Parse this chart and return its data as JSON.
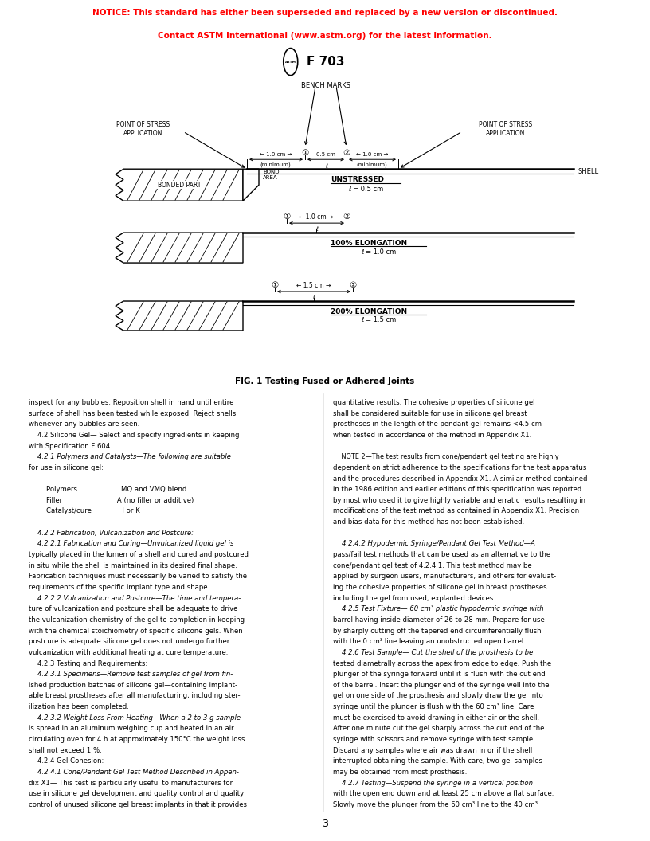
{
  "notice_line1": "NOTICE: This standard has either been superseded and replaced by a new version or discontinued.",
  "notice_line2": "Contact ASTM International (www.astm.org) for the latest information.",
  "notice_color": "#FF0000",
  "title": "F 703",
  "fig_caption": "FIG. 1 Testing Fused or Adhered Joints",
  "page_number": "3",
  "body_col1": [
    "inspect for any bubbles. Reposition shell in hand until entire",
    "surface of shell has been tested while exposed. Reject shells",
    "whenever any bubbles are seen.",
    "    4.2 Silicone Gel— Select and specify ingredients in keeping",
    "with Specification F 604.",
    "    4.2.1 Polymers and Catalysts—The following are suitable",
    "for use in silicone gel:",
    "",
    "        Polymers                    MQ and VMQ blend",
    "        Filler                         A (no filler or additive)",
    "        Catalyst/cure              J or K",
    "",
    "    4.2.2 Fabrication, Vulcanization and Postcure:",
    "    4.2.2.1 Fabrication and Curing—Unvulcanized liquid gel is",
    "typically placed in the lumen of a shell and cured and postcured",
    "in situ while the shell is maintained in its desired final shape.",
    "Fabrication techniques must necessarily be varied to satisfy the",
    "requirements of the specific implant type and shape.",
    "    4.2.2.2 Vulcanization and Postcure—The time and tempera-",
    "ture of vulcanization and postcure shall be adequate to drive",
    "the vulcanization chemistry of the gel to completion in keeping",
    "with the chemical stoichiometry of specific silicone gels. When",
    "postcure is adequate silicone gel does not undergo further",
    "vulcanization with additional heating at cure temperature.",
    "    4.2.3 Testing and Requirements:",
    "    4.2.3.1 Specimens—Remove test samples of gel from fin-",
    "ished production batches of silicone gel—containing implant-",
    "able breast prostheses after all manufacturing, including ster-",
    "ilization has been completed.",
    "    4.2.3.2 Weight Loss From Heating—When a 2 to 3 g sample",
    "is spread in an aluminum weighing cup and heated in an air",
    "circulating oven for 4 h at approximately 150°C the weight loss",
    "shall not exceed 1 %.",
    "    4.2.4 Gel Cohesion:",
    "    4.2.4.1 Cone/Pendant Gel Test Method Described in Appen-",
    "dix X1— This test is particularly useful to manufacturers for",
    "use in silicone gel development and quality control and quality",
    "control of unused silicone gel breast implants in that it provides"
  ],
  "body_col2": [
    "quantitative results. The cohesive properties of silicone gel",
    "shall be considered suitable for use in silicone gel breast",
    "prostheses in the length of the pendant gel remains <4.5 cm",
    "when tested in accordance of the method in Appendix X1.",
    "",
    "    NOTE 2—The test results from cone/pendant gel testing are highly",
    "dependent on strict adherence to the specifications for the test apparatus",
    "and the procedures described in Appendix X1. A similar method contained",
    "in the 1986 edition and earlier editions of this specification was reported",
    "by most who used it to give highly variable and erratic results resulting in",
    "modifications of the test method as contained in Appendix X1. Precision",
    "and bias data for this method has not been established.",
    "",
    "    4.2.4.2 Hypodermic Syringe/Pendant Gel Test Method—A",
    "pass/fail test methods that can be used as an alternative to the",
    "cone/pendant gel test of 4.2.4.1. This test method may be",
    "applied by surgeon users, manufacturers, and others for evaluat-",
    "ing the cohesive properties of silicone gel in breast prostheses",
    "including the gel from used, explanted devices.",
    "    4.2.5 Test Fixture— 60 cm³ plastic hypodermic syringe with",
    "barrel having inside diameter of 26 to 28 mm. Prepare for use",
    "by sharply cutting off the tapered end circumferentially flush",
    "with the 0 cm³ line leaving an unobstructed open barrel.",
    "    4.2.6 Test Sample— Cut the shell of the prosthesis to be",
    "tested diametrally across the apex from edge to edge. Push the",
    "plunger of the syringe forward until it is flush with the cut end",
    "of the barrel. Insert the plunger end of the syringe well into the",
    "gel on one side of the prosthesis and slowly draw the gel into",
    "syringe until the plunger is flush with the 60 cm³ line. Care",
    "must be exercised to avoid drawing in either air or the shell.",
    "After one minute cut the gel sharply across the cut end of the",
    "syringe with scissors and remove syringe with test sample.",
    "Discard any samples where air was drawn in or if the shell",
    "interrupted obtaining the sample. With care, two gel samples",
    "may be obtained from most prosthesis.",
    "    4.2.7 Testing—Suspend the syringe in a vertical position",
    "with the open end down and at least 25 cm above a flat surface.",
    "Slowly move the plunger from the 60 cm³ line to the 40 cm³"
  ]
}
